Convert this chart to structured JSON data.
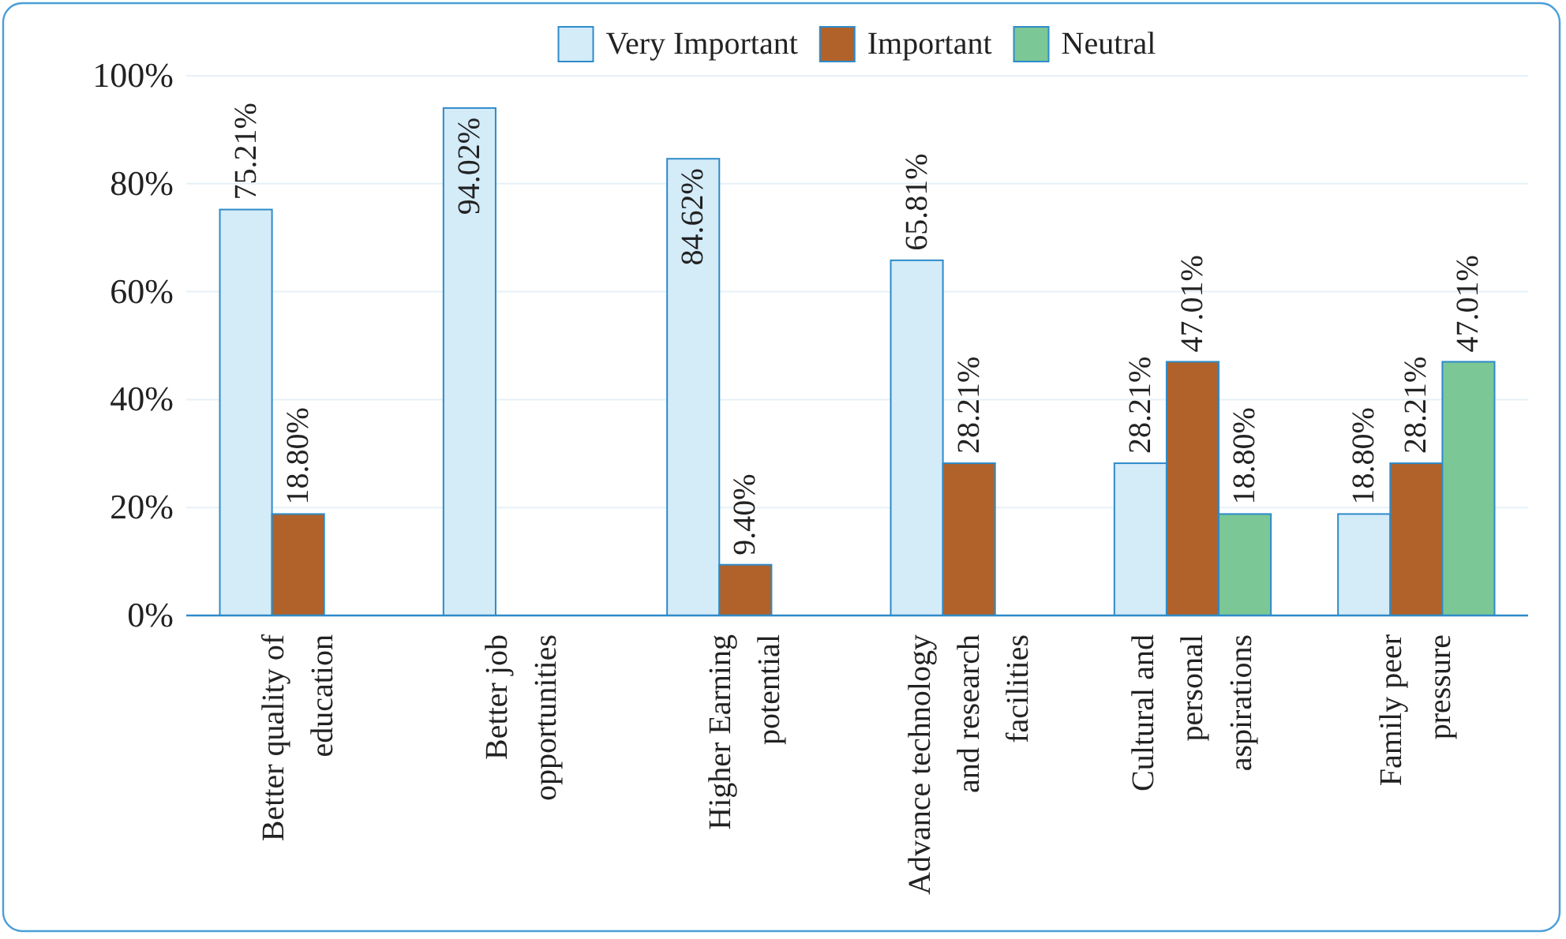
{
  "chart_data": {
    "type": "bar",
    "categories": [
      "Better quality of education",
      "Better job opportunities",
      "Higher Earning potential",
      "Advance technology and research facilities",
      "Cultural and personal aspirations",
      "Family peer pressure"
    ],
    "series": [
      {
        "name": "Very Important",
        "color": "#d4ebf8",
        "values": [
          75.21,
          94.02,
          84.62,
          65.81,
          28.21,
          18.8
        ],
        "value_labels": [
          "75.21%",
          "94.02%",
          "84.62%",
          "65.81%",
          "28.21%",
          "18.80%"
        ]
      },
      {
        "name": "Important",
        "color": "#b0622a",
        "values": [
          18.8,
          null,
          9.4,
          28.21,
          47.01,
          28.21
        ],
        "value_labels": [
          "18.80%",
          null,
          "9.40%",
          "28.21%",
          "47.01%",
          "28.21%"
        ]
      },
      {
        "name": "Neutral",
        "color": "#7bc795",
        "values": [
          null,
          null,
          null,
          null,
          18.8,
          47.01
        ],
        "value_labels": [
          null,
          null,
          null,
          null,
          "18.80%",
          "47.01%"
        ]
      }
    ],
    "ylim": [
      0,
      100
    ],
    "yticks": [
      {
        "value": 0,
        "label": "0%"
      },
      {
        "value": 20,
        "label": "20%"
      },
      {
        "value": 40,
        "label": "40%"
      },
      {
        "value": 60,
        "label": "60%"
      },
      {
        "value": 80,
        "label": "80%"
      },
      {
        "value": 100,
        "label": "100%"
      }
    ],
    "grid": "y",
    "legend": "top"
  }
}
